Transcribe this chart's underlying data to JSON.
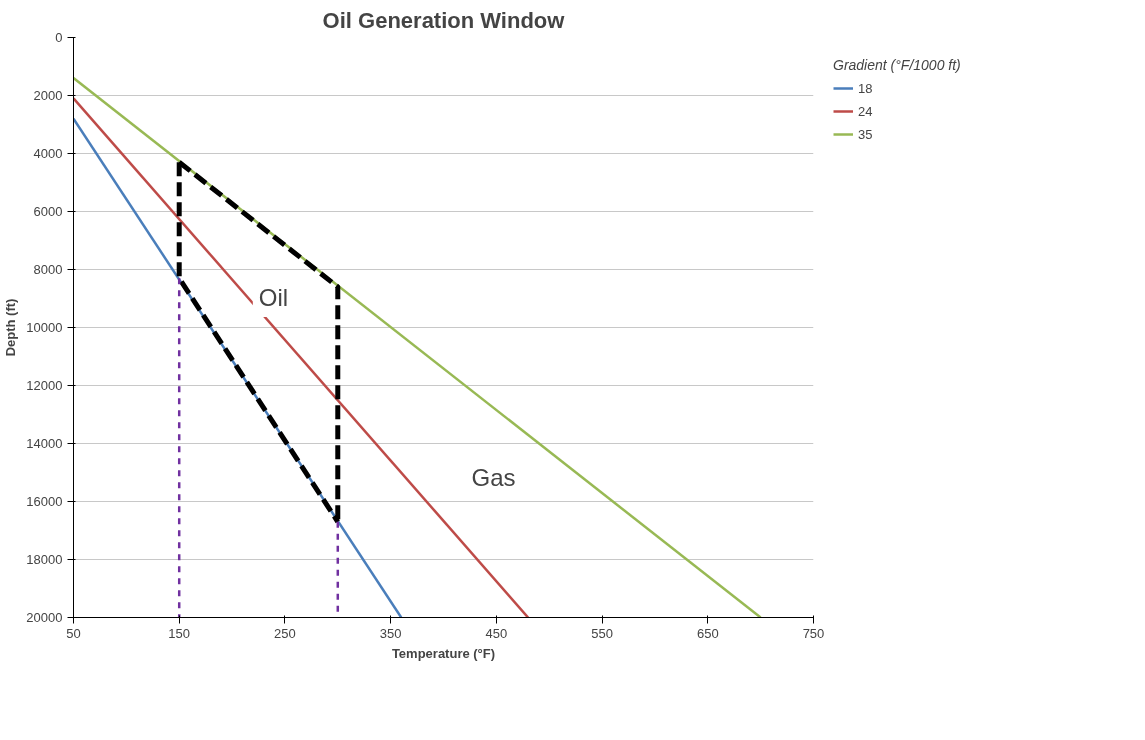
{
  "chart_data": {
    "type": "line",
    "title": "Oil Generation Window",
    "xlabel": "Temperature (°F)",
    "ylabel": "Depth (ft)",
    "legend_title": "Gradient (°F/1000 ft)",
    "xlim": [
      50,
      750
    ],
    "ylim": [
      20000,
      0
    ],
    "xticks": [
      50,
      150,
      250,
      350,
      450,
      550,
      650,
      750
    ],
    "yticks": [
      0,
      2000,
      4000,
      6000,
      8000,
      10000,
      12000,
      14000,
      16000,
      18000,
      20000
    ],
    "grid": "y",
    "legend": "right",
    "line_style": "solid",
    "series": [
      {
        "name": "18",
        "color": "#4a7ebb",
        "x": [
          50,
          360
        ],
        "values": [
          2800,
          20000
        ]
      },
      {
        "name": "24",
        "color": "#be4b48",
        "x": [
          50,
          480
        ],
        "values": [
          2100,
          20000
        ]
      },
      {
        "name": "35",
        "color": "#98b954",
        "x": [
          50,
          700
        ],
        "values": [
          1400,
          20000
        ]
      },
      {
        "color": "#000000",
        "line_style": "dashed",
        "x": [
          150,
          150,
          300
        ],
        "values": [
          4300,
          8300,
          16700
        ]
      },
      {
        "color": "#000000",
        "line_style": "dashed",
        "x": [
          150,
          300,
          300
        ],
        "values": [
          4300,
          8600,
          16700
        ]
      },
      {
        "color": "#7030a0",
        "line_style": "dashed",
        "x": [
          150,
          150
        ],
        "values": [
          8300,
          20000
        ]
      },
      {
        "color": "#7030a0",
        "line_style": "dashed",
        "x": [
          300,
          300
        ],
        "values": [
          16700,
          20000
        ]
      }
    ],
    "annotations": [
      "Oil",
      "Gas"
    ]
  }
}
